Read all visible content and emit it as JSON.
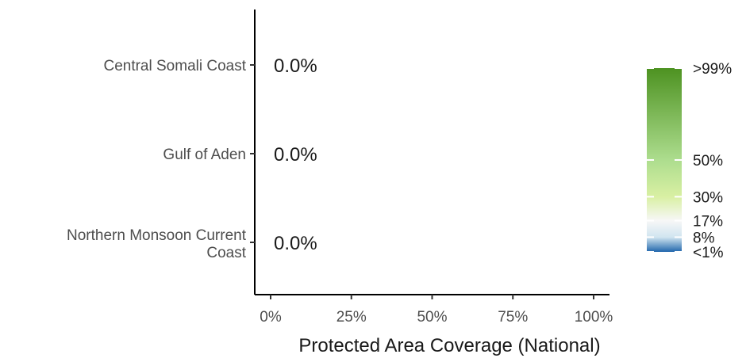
{
  "chart_data": {
    "type": "bar",
    "orientation": "horizontal",
    "categories": [
      "Central Somali Coast",
      "Gulf of Aden",
      "Northern Monsoon Current Coast"
    ],
    "values": [
      0.0,
      0.0,
      0.0
    ],
    "data_labels": [
      "0.0%",
      "0.0%",
      "0.0%"
    ],
    "xlabel": "Protected Area Coverage (National)",
    "ylabel": "",
    "xlim": [
      0,
      100
    ],
    "x_ticks": [
      0,
      25,
      50,
      75,
      100
    ],
    "x_tick_labels": [
      "0%",
      "25%",
      "50%",
      "75%",
      "100%"
    ],
    "grid": false,
    "legend": {
      "position": "right",
      "type": "colorbar",
      "breaks": [
        0,
        8,
        17,
        30,
        50,
        100
      ],
      "labels": [
        "<1%",
        "8%",
        "17%",
        "30%",
        "50%",
        ">99%"
      ],
      "colors": [
        "#2166ac",
        "#d1e5f0",
        "#f7f7f7",
        "#d9f0a3",
        "#addd8e",
        "#4d9221"
      ]
    }
  }
}
